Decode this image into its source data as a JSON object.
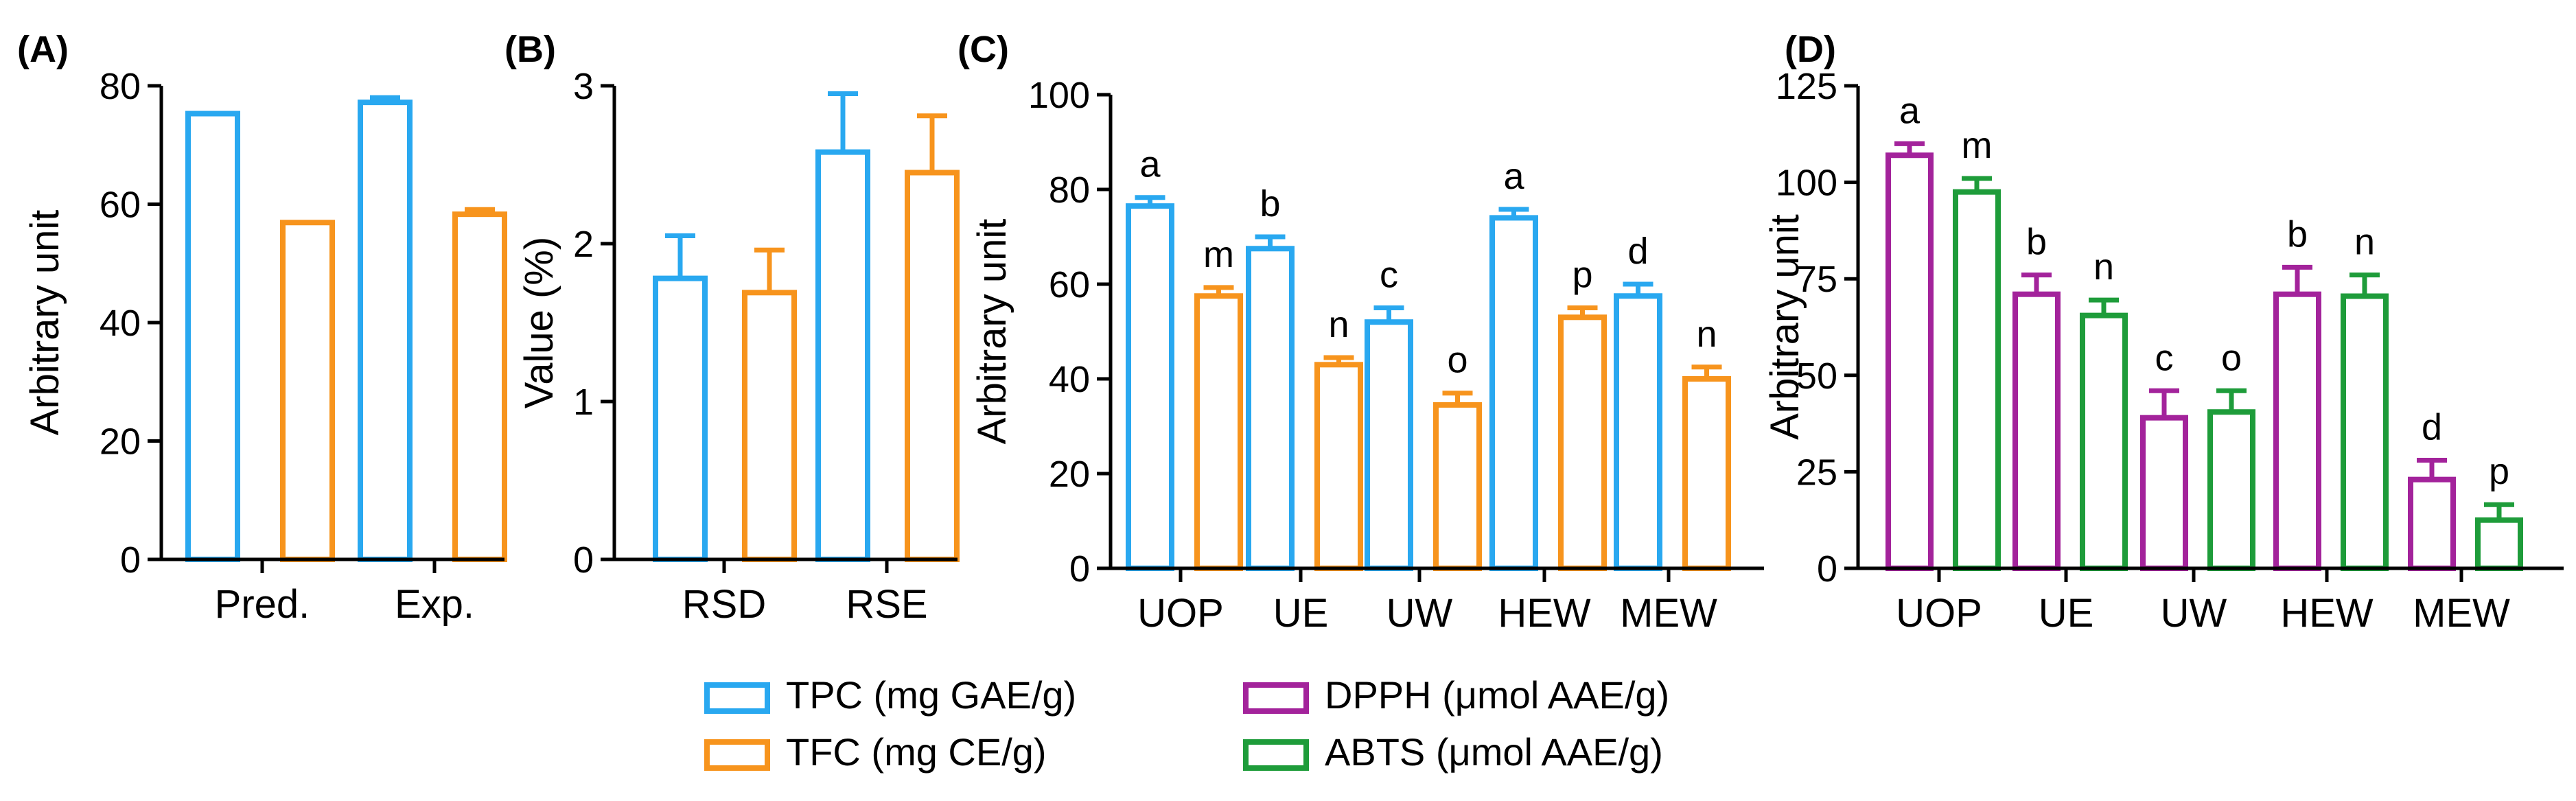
{
  "colors": {
    "TPC": "#29a8f0",
    "TFC": "#f7941d",
    "DPPH": "#a3239b",
    "ABTS": "#1e9c3a",
    "axis": "#000000"
  },
  "legend": [
    {
      "key": "TPC",
      "label": "TPC (mg GAE/g)"
    },
    {
      "key": "TFC",
      "label": "TFC (mg CE/g)"
    },
    {
      "key": "DPPH",
      "label": "DPPH (μmol AAE/g)"
    },
    {
      "key": "ABTS",
      "label": "ABTS (μmol AAE/g)"
    }
  ],
  "chart_data": [
    {
      "panel": "(A)",
      "type": "bar",
      "ylabel": "Arbitrary unit",
      "ylim": [
        0,
        80
      ],
      "yticks": [
        0,
        20,
        40,
        60,
        80
      ],
      "categories": [
        "Pred.",
        "Exp."
      ],
      "series": [
        {
          "key": "TPC",
          "values": [
            75.3,
            77.2
          ],
          "errors": [
            0,
            0.8
          ]
        },
        {
          "key": "TFC",
          "values": [
            56.9,
            58.3
          ],
          "errors": [
            0,
            0.8
          ]
        }
      ]
    },
    {
      "panel": "(B)",
      "type": "bar",
      "ylabel": "Value (%)",
      "ylim": [
        0,
        3
      ],
      "yticks": [
        0,
        1,
        2,
        3
      ],
      "categories": [
        "RSD",
        "RSE"
      ],
      "series": [
        {
          "key": "TPC",
          "values": [
            1.78,
            2.58
          ],
          "errors": [
            0.27,
            0.37
          ]
        },
        {
          "key": "TFC",
          "values": [
            1.69,
            2.45
          ],
          "errors": [
            0.27,
            0.36
          ]
        }
      ]
    },
    {
      "panel": "(C)",
      "type": "bar",
      "ylabel": "Arbitrary unit",
      "ylim": [
        0,
        100
      ],
      "yticks": [
        0,
        20,
        40,
        60,
        80,
        100
      ],
      "categories": [
        "UOP",
        "UE",
        "UW",
        "HEW",
        "MEW"
      ],
      "series": [
        {
          "key": "TPC",
          "values": [
            76.5,
            67.5,
            52,
            74,
            57.5
          ],
          "errors": [
            1.8,
            2.5,
            3,
            1.8,
            2.5
          ],
          "letters": [
            "a",
            "b",
            "c",
            "a",
            "d"
          ]
        },
        {
          "key": "TFC",
          "values": [
            57.5,
            43,
            34.5,
            53,
            40
          ],
          "errors": [
            1.8,
            1.5,
            2.5,
            2,
            2.5
          ],
          "letters": [
            "m",
            "n",
            "o",
            "p",
            "n"
          ]
        }
      ]
    },
    {
      "panel": "(D)",
      "type": "bar",
      "ylabel": "Arbitrary unit",
      "ylim": [
        0,
        125
      ],
      "yticks": [
        0,
        25,
        50,
        75,
        100,
        125
      ],
      "categories": [
        "UOP",
        "UE",
        "UW",
        "HEW",
        "MEW"
      ],
      "series": [
        {
          "key": "DPPH",
          "values": [
            107,
            71,
            39,
            71,
            23
          ],
          "errors": [
            3,
            5,
            7,
            7,
            5
          ],
          "letters": [
            "a",
            "b",
            "c",
            "b",
            "d"
          ]
        },
        {
          "key": "ABTS",
          "values": [
            97.5,
            65.5,
            40.5,
            70.5,
            12.5
          ],
          "errors": [
            3.5,
            4,
            5.5,
            5.5,
            4
          ],
          "letters": [
            "m",
            "n",
            "o",
            "n",
            "p"
          ]
        }
      ]
    }
  ]
}
